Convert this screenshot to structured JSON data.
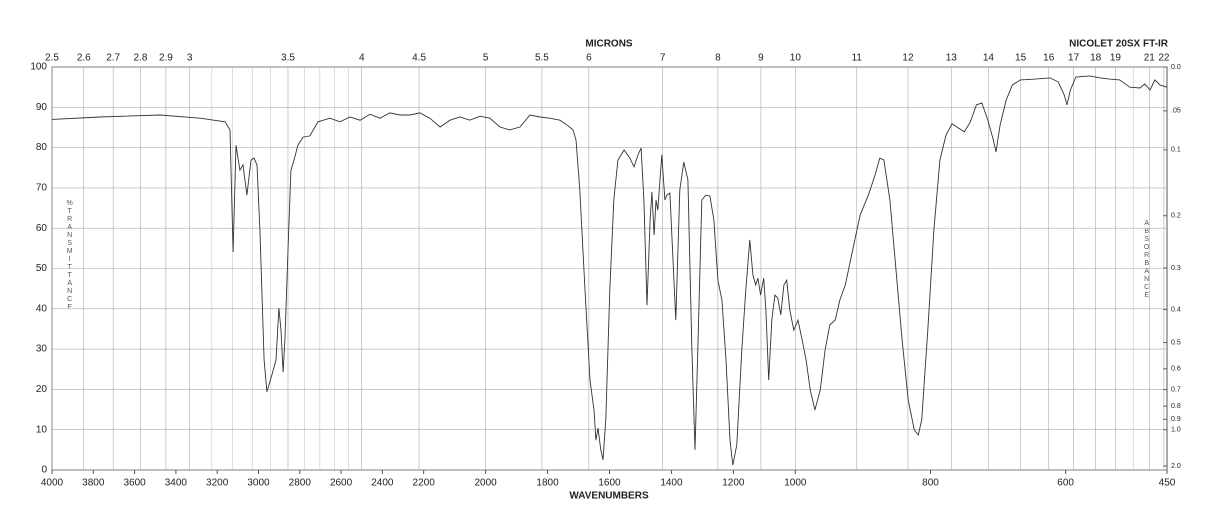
{
  "chart_data": {
    "type": "line",
    "title": "MICRONS",
    "subtitle": "NICOLET 20SX FT-IR",
    "xlabel": "WAVENUMBERS",
    "ylabel": "%TRANSMITTANCE",
    "y2label": "ABSORBANCE",
    "xlim": [
      4000,
      450
    ],
    "xbreaks": [
      2200,
      1000
    ],
    "xticks": [
      4000,
      3800,
      3600,
      3400,
      3200,
      3000,
      2800,
      2600,
      2400,
      2200,
      2000,
      1800,
      1600,
      1400,
      1200,
      1000,
      800,
      600,
      450
    ],
    "x2ticks": [
      2.5,
      2.6,
      2.7,
      2.8,
      2.9,
      3,
      3.5,
      4,
      4.5,
      5,
      5.5,
      6,
      7,
      8,
      9,
      10,
      11,
      12,
      13,
      14,
      15,
      16,
      17,
      18,
      19,
      21,
      22
    ],
    "x2minor": [
      3.1,
      3.2,
      3.3,
      3.4,
      3.6,
      3.7,
      3.8,
      3.9,
      20
    ],
    "ylim": [
      0,
      100
    ],
    "yticks": [
      0,
      10,
      20,
      30,
      40,
      50,
      60,
      70,
      80,
      90,
      100
    ],
    "y2ticks": [
      {
        "value": 0,
        "label": "0.0"
      },
      {
        "value": 0.05,
        "label": ".05"
      },
      0.1,
      0.2,
      0.3,
      0.4,
      0.5,
      0.6,
      0.7,
      0.8,
      0.9,
      {
        "value": 1,
        "label": "1.0"
      },
      {
        "value": 2,
        "label": "2.0"
      }
    ],
    "grid": true,
    "color": "#333333",
    "x": [
      4000,
      3768,
      3477,
      3283,
      3162,
      3138,
      3123,
      3109,
      3090,
      3075,
      3056,
      3036,
      3022,
      3007,
      2993,
      2973,
      2959,
      2935,
      2915,
      2901,
      2891,
      2881,
      2872,
      2857,
      2843,
      2828,
      2809,
      2784,
      2751,
      2712,
      2654,
      2605,
      2557,
      2508,
      2460,
      2412,
      2363,
      2315,
      2266,
      2218,
      2180,
      2147,
      2115,
      2083,
      2051,
      2018,
      1986,
      1954,
      1922,
      1889,
      1857,
      1825,
      1793,
      1760,
      1734,
      1718,
      1708,
      1696,
      1679,
      1663,
      1650,
      1644,
      1637,
      1628,
      1621,
      1612,
      1599,
      1586,
      1573,
      1553,
      1534,
      1521,
      1508,
      1498,
      1489,
      1479,
      1469,
      1463,
      1456,
      1450,
      1444,
      1437,
      1431,
      1421,
      1415,
      1405,
      1395,
      1386,
      1373,
      1360,
      1347,
      1334,
      1324,
      1315,
      1302,
      1289,
      1276,
      1263,
      1250,
      1237,
      1224,
      1211,
      1202,
      1189,
      1173,
      1160,
      1147,
      1137,
      1128,
      1121,
      1112,
      1102,
      1095,
      1086,
      1076,
      1066,
      1057,
      1047,
      1037,
      1028,
      1018,
      1005,
      996,
      990,
      984,
      978,
      971,
      963,
      956,
      949,
      941,
      934,
      926,
      912,
      904,
      892,
      882,
      875,
      869,
      860,
      851,
      842,
      833,
      824,
      818,
      813,
      804,
      795,
      786,
      777,
      768,
      759,
      750,
      741,
      732,
      724,
      715,
      707,
      703,
      697,
      688,
      679,
      667,
      645,
      623,
      611,
      602,
      598,
      593,
      585,
      564,
      549,
      535,
      520,
      505,
      490,
      483,
      475,
      468,
      460,
      450
    ],
    "values": [
      87,
      87.6,
      88.1,
      87.3,
      86.4,
      84.4,
      54.1,
      80.6,
      74.4,
      75.7,
      68.2,
      76.9,
      77.4,
      75.7,
      59.6,
      27.3,
      19.4,
      23.6,
      27.3,
      40.2,
      34.7,
      24.3,
      32.3,
      54.6,
      74.4,
      76.9,
      80.6,
      82.6,
      82.9,
      86.4,
      87.3,
      86.4,
      87.6,
      86.8,
      88.3,
      87.3,
      88.6,
      88.1,
      88.1,
      88.6,
      87.3,
      85.1,
      86.8,
      87.6,
      86.8,
      87.8,
      87.3,
      85.1,
      84.4,
      85.1,
      88.1,
      87.6,
      87.3,
      86.8,
      85.4,
      84.4,
      81.9,
      69.5,
      44.7,
      22.3,
      14.9,
      7.4,
      10.4,
      5,
      2.5,
      12.4,
      44.7,
      67,
      76.9,
      79.4,
      77.4,
      75.2,
      78.2,
      79.9,
      67,
      40.9,
      62,
      69,
      58.3,
      67,
      64.5,
      72,
      78.2,
      67,
      68.2,
      68.7,
      52.1,
      37.2,
      69.5,
      76.4,
      72,
      29.8,
      5,
      29.8,
      67,
      68.2,
      68,
      62,
      47.1,
      42.2,
      27.3,
      7.4,
      1.2,
      6.2,
      29.8,
      44.7,
      57.1,
      48.4,
      45.9,
      47.6,
      43.4,
      47.6,
      39.7,
      22.3,
      37.2,
      43.4,
      42.7,
      38.5,
      45.9,
      47.1,
      39.7,
      34.7,
      37.2,
      32.3,
      27.3,
      19.9,
      14.9,
      19.9,
      29.8,
      36,
      37.2,
      42.2,
      45.9,
      57.1,
      63.3,
      68.2,
      73.2,
      77.4,
      76.9,
      67,
      49.6,
      32.3,
      17.4,
      9.9,
      8.7,
      12.4,
      34.7,
      59.6,
      76.9,
      83.1,
      85.9,
      84.9,
      83.9,
      86.4,
      90.6,
      91.1,
      86.8,
      81.9,
      78.9,
      85.6,
      91.8,
      95.5,
      96.8,
      97,
      97.3,
      96.3,
      93,
      90.6,
      94.3,
      97.5,
      97.8,
      97.3,
      97,
      96.8,
      95,
      94.8,
      95.8,
      94.3,
      96.8,
      95.5,
      95
    ]
  }
}
